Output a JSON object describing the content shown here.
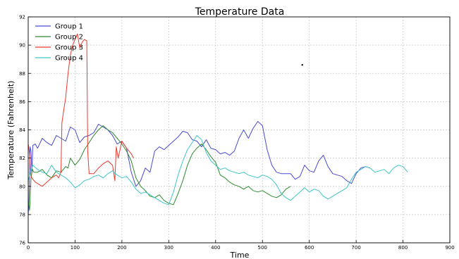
{
  "chart_data": {
    "type": "line",
    "title": "Temperature Data",
    "xlabel": "Time",
    "ylabel": "Temperature (Fahrenheit)",
    "xlim": [
      0,
      900
    ],
    "ylim": [
      76,
      92
    ],
    "xticks": [
      0,
      100,
      200,
      300,
      400,
      500,
      600,
      700,
      800,
      900
    ],
    "yticks": [
      76,
      78,
      80,
      82,
      84,
      86,
      88,
      90,
      92
    ],
    "grid": true,
    "legend_position": "top-left",
    "series": [
      {
        "name": "Group 1",
        "color": "#4a4ad6",
        "x": [
          0,
          2,
          4,
          6,
          8,
          10,
          15,
          20,
          30,
          40,
          50,
          60,
          70,
          80,
          90,
          100,
          110,
          120,
          130,
          140,
          150,
          160,
          170,
          180,
          190,
          200,
          210,
          220,
          230,
          240,
          250,
          260,
          270,
          280,
          290,
          300,
          310,
          320,
          330,
          340,
          350,
          360,
          370,
          380,
          390,
          400,
          410,
          420,
          430,
          440,
          450,
          460,
          470,
          480,
          490,
          500,
          510,
          520,
          530,
          540,
          550,
          560,
          570,
          580,
          590,
          600,
          610,
          620,
          630,
          640,
          650,
          660,
          670,
          680,
          690,
          700,
          710,
          720,
          730
        ],
        "y": [
          78.0,
          79.2,
          82.8,
          82.5,
          81.0,
          82.9,
          83.0,
          82.7,
          83.4,
          83.1,
          82.9,
          83.6,
          83.4,
          83.2,
          84.2,
          84.0,
          83.1,
          83.5,
          83.6,
          83.8,
          84.4,
          84.2,
          84.0,
          83.6,
          83.0,
          83.2,
          82.7,
          81.0,
          80.0,
          80.4,
          81.3,
          81.0,
          82.5,
          82.8,
          82.6,
          82.9,
          83.2,
          83.5,
          83.9,
          83.8,
          83.3,
          83.2,
          82.8,
          83.3,
          82.7,
          82.6,
          82.3,
          82.4,
          82.2,
          82.5,
          83.4,
          84.0,
          83.4,
          84.1,
          84.6,
          84.3,
          82.6,
          81.5,
          81.0,
          80.9,
          80.9,
          80.9,
          80.5,
          80.7,
          81.5,
          81.1,
          81.0,
          81.8,
          82.2,
          81.4,
          80.9,
          80.8,
          80.7,
          80.4,
          80.2,
          80.9,
          81.3,
          81.4,
          81.3
        ]
      },
      {
        "name": "Group 2",
        "color": "#2e8b2e",
        "x": [
          0,
          3,
          6,
          9,
          12,
          20,
          30,
          40,
          50,
          60,
          70,
          80,
          85,
          90,
          100,
          110,
          120,
          130,
          140,
          150,
          160,
          170,
          180,
          190,
          200,
          210,
          220,
          230,
          240,
          250,
          260,
          270,
          280,
          290,
          300,
          310,
          320,
          330,
          340,
          350,
          360,
          370,
          380,
          390,
          400,
          410,
          420,
          430,
          440,
          450,
          460,
          470,
          480,
          490,
          500,
          510,
          520,
          530,
          540,
          550,
          560
        ],
        "y": [
          79.0,
          78.3,
          80.6,
          81.2,
          81.0,
          81.0,
          81.2,
          80.8,
          80.6,
          81.1,
          81.0,
          81.4,
          81.3,
          82.0,
          81.5,
          81.9,
          82.6,
          83.1,
          83.6,
          84.0,
          84.3,
          84.0,
          83.8,
          83.4,
          83.0,
          82.5,
          81.8,
          80.6,
          80.0,
          79.7,
          79.3,
          79.2,
          79.4,
          79.0,
          78.8,
          78.7,
          79.5,
          80.4,
          81.5,
          82.3,
          82.7,
          83.0,
          82.6,
          82.1,
          81.7,
          80.8,
          80.6,
          80.3,
          80.1,
          80.0,
          79.8,
          80.0,
          79.7,
          79.6,
          79.7,
          79.5,
          79.3,
          79.2,
          79.4,
          79.8,
          80.0
        ]
      },
      {
        "name": "Group 3",
        "color": "#e8392f",
        "x": [
          0,
          3,
          6,
          10,
          15,
          20,
          30,
          40,
          50,
          60,
          65,
          70,
          72,
          75,
          80,
          85,
          90,
          95,
          100,
          105,
          110,
          115,
          120,
          125,
          127,
          130,
          140,
          150,
          160,
          170,
          180,
          185,
          188,
          192,
          200,
          210,
          220,
          225
        ],
        "y": [
          83.0,
          82.3,
          80.7,
          80.5,
          80.3,
          80.2,
          80.0,
          80.3,
          80.6,
          80.8,
          80.6,
          81.0,
          84.5,
          85.2,
          86.3,
          88.0,
          89.3,
          90.0,
          90.4,
          90.8,
          89.8,
          90.2,
          90.4,
          90.3,
          82.5,
          80.9,
          80.9,
          81.3,
          81.6,
          81.8,
          81.5,
          80.4,
          82.8,
          82.0,
          83.2,
          82.7,
          82.3,
          82.0
        ]
      },
      {
        "name": "Group 4",
        "color": "#3fc6c6",
        "x": [
          0,
          5,
          10,
          20,
          30,
          40,
          50,
          60,
          70,
          80,
          90,
          100,
          110,
          120,
          130,
          140,
          150,
          160,
          170,
          180,
          190,
          200,
          210,
          220,
          230,
          240,
          250,
          260,
          270,
          280,
          290,
          300,
          310,
          320,
          330,
          340,
          350,
          360,
          370,
          380,
          390,
          400,
          410,
          420,
          430,
          440,
          450,
          460,
          470,
          480,
          490,
          500,
          510,
          520,
          530,
          540,
          550,
          560,
          570,
          580,
          590,
          600,
          610,
          620,
          630,
          640,
          650,
          660,
          670,
          680,
          690,
          700,
          710,
          720,
          730,
          740,
          750,
          760,
          770,
          780,
          790,
          800,
          810
        ],
        "y": [
          80.4,
          81.0,
          81.5,
          81.2,
          81.0,
          80.9,
          81.5,
          81.0,
          80.8,
          80.6,
          80.3,
          79.9,
          80.1,
          80.4,
          80.5,
          80.7,
          80.8,
          80.6,
          80.9,
          81.1,
          80.8,
          80.6,
          80.7,
          80.3,
          79.8,
          79.5,
          79.6,
          79.4,
          79.2,
          79.0,
          78.8,
          78.7,
          79.6,
          80.8,
          81.8,
          82.6,
          83.1,
          83.6,
          83.3,
          82.4,
          81.8,
          81.5,
          81.2,
          81.3,
          81.1,
          81.0,
          80.9,
          81.0,
          80.8,
          80.7,
          80.6,
          80.8,
          80.7,
          80.5,
          80.1,
          79.5,
          79.2,
          79.0,
          79.3,
          79.6,
          79.9,
          79.6,
          79.8,
          79.7,
          79.3,
          79.1,
          79.3,
          79.5,
          79.7,
          79.9,
          80.5,
          81.0,
          81.2,
          81.4,
          81.3,
          81.0,
          81.1,
          81.2,
          80.9,
          81.3,
          81.5,
          81.4,
          81.0
        ]
      }
    ],
    "annotations": [
      {
        "x": 585,
        "y": 88.6,
        "marker": "dot"
      }
    ]
  }
}
